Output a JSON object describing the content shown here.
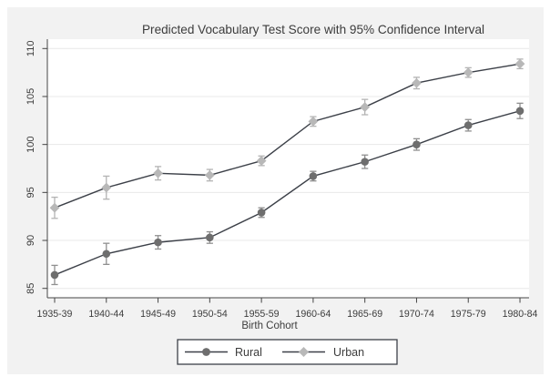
{
  "figure": {
    "background": "#f2f2f2",
    "plot_background": "#ffffff",
    "gridline_color": "#e8e8e8",
    "axis_color": "#454545"
  },
  "chart_data": {
    "type": "line",
    "title": "Predicted Vocabulary Test Score with 95% Confidence Interval",
    "xlabel": "Birth Cohort",
    "ylabel": "",
    "categories": [
      "1935-39",
      "1940-44",
      "1945-49",
      "1950-54",
      "1955-59",
      "1960-64",
      "1965-69",
      "1970-74",
      "1975-79",
      "1980-84"
    ],
    "yticks": [
      85,
      90,
      95,
      100,
      105,
      110
    ],
    "ylim": [
      83.5,
      111.0
    ],
    "grid": true,
    "error_bars": "95% confidence interval",
    "series": [
      {
        "name": "Rural",
        "marker": "circle",
        "color": "#6e6e6e",
        "line_color": "#3c4048",
        "ci_color": "#8f8f8f",
        "values": [
          86.4,
          88.6,
          89.8,
          90.3,
          92.9,
          96.7,
          98.2,
          100.0,
          102.0,
          103.5
        ],
        "ci_low": [
          85.4,
          87.5,
          89.1,
          89.7,
          92.4,
          96.2,
          97.5,
          99.4,
          101.4,
          102.7
        ],
        "ci_high": [
          87.4,
          89.7,
          90.5,
          90.9,
          93.4,
          97.2,
          98.9,
          100.6,
          102.6,
          104.3
        ]
      },
      {
        "name": "Urban",
        "marker": "diamond",
        "color": "#b8b8b8",
        "line_color": "#3c4048",
        "ci_color": "#b3b3b3",
        "values": [
          93.4,
          95.5,
          97.0,
          96.8,
          98.3,
          102.4,
          103.9,
          106.4,
          107.5,
          108.4
        ],
        "ci_low": [
          92.3,
          94.3,
          96.3,
          96.2,
          97.8,
          101.9,
          103.1,
          105.8,
          107.0,
          107.9
        ],
        "ci_high": [
          94.5,
          96.7,
          97.7,
          97.4,
          98.8,
          102.9,
          104.7,
          107.0,
          108.0,
          108.9
        ]
      }
    ],
    "legend": {
      "position": "bottom",
      "items": [
        "Rural",
        "Urban"
      ]
    }
  }
}
